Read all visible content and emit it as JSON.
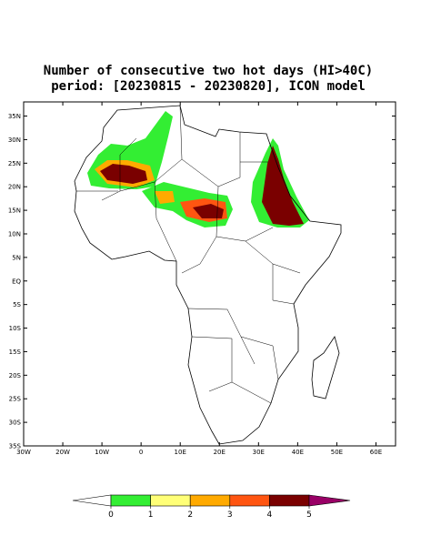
{
  "title": [
    "Number of consecutive two hot days (HI>40C)",
    "period: [20230815 - 20230820], ICON model"
  ],
  "map": {
    "xlim": [
      -30,
      65
    ],
    "ylim": [
      -35,
      38
    ],
    "lon_ticks": [
      {
        "value": -30,
        "label": "30W"
      },
      {
        "value": -20,
        "label": "20W"
      },
      {
        "value": -10,
        "label": "10W"
      },
      0,
      {
        "value": 10,
        "label": "10E"
      },
      {
        "value": 20,
        "label": "20E"
      },
      {
        "value": 30,
        "label": "30E"
      },
      {
        "value": 40,
        "label": "40E"
      },
      {
        "value": 50,
        "label": "50E"
      },
      {
        "value": 60,
        "label": "60E"
      }
    ],
    "lat_ticks": [
      {
        "value": 35,
        "label": "35N"
      },
      {
        "value": 30,
        "label": "30N"
      },
      {
        "value": 25,
        "label": "25N"
      },
      {
        "value": 20,
        "label": "20N"
      },
      {
        "value": 15,
        "label": "15N"
      },
      {
        "value": 10,
        "label": "10N"
      },
      {
        "value": 5,
        "label": "5N"
      },
      {
        "value": 0,
        "label": "EQ"
      },
      {
        "value": -5,
        "label": "5S"
      },
      {
        "value": -10,
        "label": "10S"
      },
      {
        "value": -15,
        "label": "15S"
      },
      {
        "value": -20,
        "label": "20S"
      },
      {
        "value": -25,
        "label": "25S"
      },
      {
        "value": -30,
        "label": "30S"
      },
      {
        "value": -35,
        "label": "35S"
      }
    ]
  },
  "colorbar": {
    "levels": [
      0,
      1,
      2,
      3,
      4,
      5
    ],
    "colors": [
      "#ffffff",
      "#33ee33",
      "#ffff77",
      "#ffaa00",
      "#ff5511",
      "#7a0000",
      "#990066"
    ]
  }
}
